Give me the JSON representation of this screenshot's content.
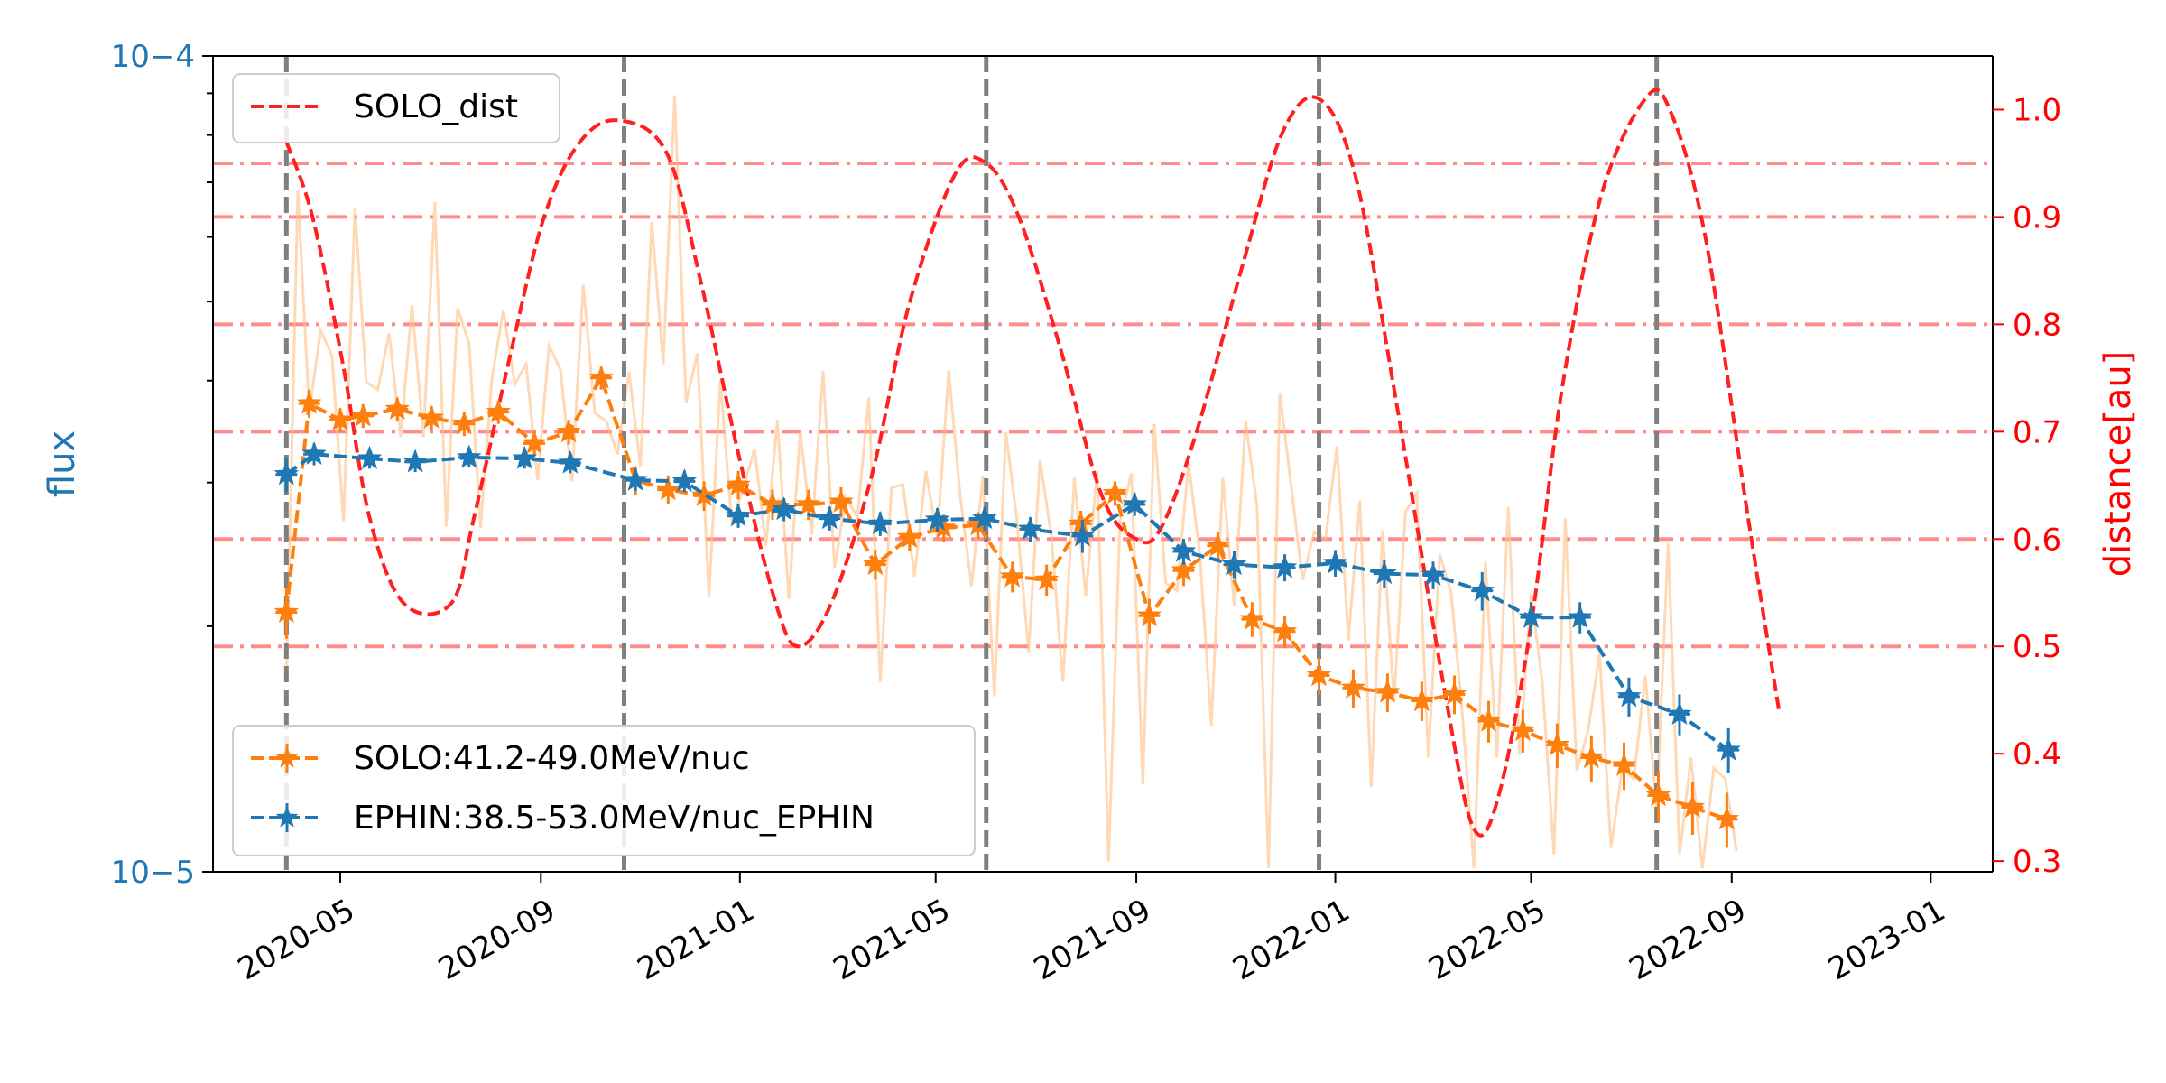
{
  "chart_data": {
    "type": "line",
    "x_axis": {
      "type": "date",
      "range": [
        "2020-02-13",
        "2023-02-08"
      ],
      "ticks": [
        "2020-05-01",
        "2020-09-01",
        "2021-01-01",
        "2021-05-01",
        "2021-09-01",
        "2022-01-01",
        "2022-05-01",
        "2022-09-01",
        "2023-01-01"
      ],
      "tick_labels": [
        "2020-05",
        "2020-09",
        "2021-01",
        "2021-05",
        "2021-09",
        "2022-01",
        "2022-05",
        "2022-09",
        "2023-01"
      ]
    },
    "y_left": {
      "label": "flux",
      "scale": "log",
      "range": [
        1e-05,
        0.0001
      ],
      "major_tick_labels": [
        "10−4",
        "10−5"
      ],
      "color": "#1f77b4"
    },
    "y_right": {
      "label": "distance[au]",
      "range": [
        0.29,
        1.05
      ],
      "ticks": [
        0.3,
        0.4,
        0.5,
        0.6,
        0.7,
        0.8,
        0.9,
        1.0
      ],
      "tick_labels": [
        "0.3",
        "0.4",
        "0.5",
        "0.6",
        "0.7",
        "0.8",
        "0.9",
        "1.0"
      ],
      "color": "#ff0000"
    },
    "horizontal_reference_lines": {
      "axis": "right",
      "values": [
        0.5,
        0.6,
        0.7,
        0.8,
        0.9,
        0.95
      ],
      "style": "dash-dot",
      "color": "#ff0000"
    },
    "vertical_reference_lines": {
      "dates": [
        "2020-03-29",
        "2020-10-22",
        "2021-06-01",
        "2021-12-22",
        "2022-07-17"
      ],
      "style": "dashed",
      "color": "#808080"
    },
    "grid": false,
    "series": [
      {
        "name": "SOLO_dist",
        "axis": "right",
        "style": "dashed",
        "color": "#ff2020",
        "legend": "top-left",
        "x": [
          "2020-03-29",
          "2020-04-14",
          "2020-05-03",
          "2020-05-19",
          "2020-06-09",
          "2020-07-08",
          "2020-07-22",
          "2020-08-13",
          "2020-09-03",
          "2020-09-25",
          "2020-10-19",
          "2020-11-17",
          "2020-12-08",
          "2020-12-31",
          "2021-01-23",
          "2021-02-06",
          "2021-02-26",
          "2021-03-23",
          "2021-04-15",
          "2021-05-13",
          "2021-06-01",
          "2021-06-21",
          "2021-07-16",
          "2021-08-11",
          "2021-09-01",
          "2021-09-16",
          "2021-10-08",
          "2021-11-06",
          "2021-11-30",
          "2021-12-22",
          "2022-01-13",
          "2022-02-06",
          "2022-03-10",
          "2022-03-27",
          "2022-04-11",
          "2022-05-01",
          "2022-05-20",
          "2022-06-13",
          "2022-07-10",
          "2022-07-25",
          "2022-08-16",
          "2022-09-11",
          "2022-09-30"
        ],
        "y": [
          0.97,
          0.9,
          0.76,
          0.62,
          0.54,
          0.54,
          0.62,
          0.77,
          0.9,
          0.97,
          0.99,
          0.96,
          0.84,
          0.68,
          0.54,
          0.5,
          0.54,
          0.66,
          0.82,
          0.94,
          0.95,
          0.9,
          0.78,
          0.64,
          0.6,
          0.61,
          0.7,
          0.86,
          0.98,
          1.01,
          0.94,
          0.74,
          0.45,
          0.33,
          0.36,
          0.52,
          0.74,
          0.92,
          1.01,
          1.0,
          0.88,
          0.62,
          0.44
        ]
      },
      {
        "name": "SOLO:41.2-49.0MeV/nuc",
        "axis": "left",
        "style": "dashed",
        "marker": "star",
        "color": "#ff7f0e",
        "legend": "bottom-left",
        "x": [
          "2020-03-29",
          "2020-04-12",
          "2020-05-01",
          "2020-05-15",
          "2020-06-05",
          "2020-06-26",
          "2020-07-16",
          "2020-08-06",
          "2020-08-28",
          "2020-09-18",
          "2020-10-08",
          "2020-10-29",
          "2020-11-18",
          "2020-12-10",
          "2020-12-31",
          "2021-01-21",
          "2021-02-12",
          "2021-03-04",
          "2021-03-25",
          "2021-04-15",
          "2021-05-06",
          "2021-05-27",
          "2021-06-17",
          "2021-07-08",
          "2021-07-29",
          "2021-08-19",
          "2021-09-09",
          "2021-09-30",
          "2021-10-21",
          "2021-11-11",
          "2021-12-01",
          "2021-12-22",
          "2022-01-12",
          "2022-02-02",
          "2022-02-23",
          "2022-03-15",
          "2022-04-05",
          "2022-04-26",
          "2022-05-17",
          "2022-06-07",
          "2022-06-27",
          "2022-07-18",
          "2022-08-08",
          "2022-08-29"
        ],
        "y": [
          2.08e-05,
          3.75e-05,
          3.58e-05,
          3.62e-05,
          3.69e-05,
          3.6e-05,
          3.54e-05,
          3.66e-05,
          3.35e-05,
          3.46e-05,
          4.03e-05,
          3.02e-05,
          2.94e-05,
          2.89e-05,
          2.98e-05,
          2.82e-05,
          2.82e-05,
          2.84e-05,
          2.38e-05,
          2.57e-05,
          2.64e-05,
          2.66e-05,
          2.3e-05,
          2.28e-05,
          2.67e-05,
          2.91e-05,
          2.06e-05,
          2.34e-05,
          2.51e-05,
          2.04e-05,
          1.97e-05,
          1.74e-05,
          1.68e-05,
          1.66e-05,
          1.62e-05,
          1.65e-05,
          1.53e-05,
          1.49e-05,
          1.43e-05,
          1.38e-05,
          1.35e-05,
          1.24e-05,
          1.2e-05,
          1.16e-05
        ],
        "y_error": [
          1.5e-06,
          1.5e-06,
          1.2e-06,
          1.2e-06,
          1.2e-06,
          1.2e-06,
          1.2e-06,
          1.2e-06,
          1.2e-06,
          1.2e-06,
          1.3e-06,
          1.2e-06,
          1.2e-06,
          1.2e-06,
          1.2e-06,
          1.2e-06,
          1.2e-06,
          1.2e-06,
          1e-06,
          1e-06,
          1e-06,
          1e-06,
          1e-06,
          1e-06,
          1e-06,
          1e-06,
          1e-06,
          1e-06,
          1e-06,
          1e-06,
          9e-07,
          9e-07,
          9e-07,
          9e-07,
          9e-07,
          9e-07,
          9e-07,
          9e-07,
          9e-07,
          9e-07,
          9e-07,
          9e-07,
          9e-07,
          9e-07
        ]
      },
      {
        "name": "EPHIN:38.5-53.0MeV/nuc_EPHIN",
        "axis": "left",
        "style": "dashed",
        "marker": "star",
        "color": "#1f77b4",
        "legend": "bottom-left",
        "x": [
          "2020-03-29",
          "2020-04-15",
          "2020-05-19",
          "2020-06-16",
          "2020-07-19",
          "2020-08-22",
          "2020-09-19",
          "2020-10-29",
          "2020-11-28",
          "2020-12-31",
          "2021-01-28",
          "2021-02-25",
          "2021-03-28",
          "2021-05-02",
          "2021-05-31",
          "2021-06-28",
          "2021-07-30",
          "2021-08-31",
          "2021-09-30",
          "2021-10-31",
          "2021-12-01",
          "2022-01-01",
          "2022-01-31",
          "2022-03-02",
          "2022-04-01",
          "2022-05-01",
          "2022-05-31",
          "2022-06-30",
          "2022-07-31",
          "2022-08-30"
        ],
        "y": [
          3.07e-05,
          3.25e-05,
          3.21e-05,
          3.18e-05,
          3.22e-05,
          3.21e-05,
          3.17e-05,
          3.02e-05,
          3.01e-05,
          2.73e-05,
          2.78e-05,
          2.71e-05,
          2.67e-05,
          2.7e-05,
          2.71e-05,
          2.63e-05,
          2.58e-05,
          2.82e-05,
          2.47e-05,
          2.38e-05,
          2.36e-05,
          2.39e-05,
          2.32e-05,
          2.31e-05,
          2.21e-05,
          2.05e-05,
          2.05e-05,
          1.64e-05,
          1.56e-05,
          1.41e-05
        ],
        "y_error": [
          1.5e-06,
          1e-06,
          9e-07,
          9e-07,
          9e-07,
          9e-07,
          9e-07,
          9e-07,
          9e-07,
          9e-07,
          9e-07,
          9e-07,
          9e-07,
          9e-07,
          9e-07,
          9e-07,
          1.2e-06,
          9e-07,
          9e-07,
          9e-07,
          9e-07,
          9e-07,
          9e-07,
          9e-07,
          1.2e-06,
          9e-07,
          9e-07,
          9e-07,
          9e-07,
          9e-07
        ]
      },
      {
        "name": "",
        "axis": "left",
        "style": "solid",
        "color": "#ffbf86",
        "opacity": 0.6,
        "legend": "none",
        "x": [
          "2020-03-29",
          "2020-04-05",
          "2020-04-12",
          "2020-04-19",
          "2020-04-26",
          "2020-05-03",
          "2020-05-10",
          "2020-05-17",
          "2020-05-24",
          "2020-05-31",
          "2020-06-07",
          "2020-06-14",
          "2020-06-21",
          "2020-06-28",
          "2020-07-05",
          "2020-07-12",
          "2020-07-19",
          "2020-07-26",
          "2020-08-02",
          "2020-08-09",
          "2020-08-16",
          "2020-08-23",
          "2020-08-30",
          "2020-09-06",
          "2020-09-13",
          "2020-09-20",
          "2020-09-27",
          "2020-10-04",
          "2020-10-11",
          "2020-10-18",
          "2020-10-25",
          "2020-11-01",
          "2020-11-08",
          "2020-11-15",
          "2020-11-22",
          "2020-11-29",
          "2020-12-06",
          "2020-12-13",
          "2020-12-20",
          "2020-12-27",
          "2021-01-03",
          "2021-01-10",
          "2021-01-17",
          "2021-01-24",
          "2021-01-31",
          "2021-02-07",
          "2021-02-14",
          "2021-02-21",
          "2021-02-28",
          "2021-03-07",
          "2021-03-14",
          "2021-03-21",
          "2021-03-28",
          "2021-04-04",
          "2021-04-11",
          "2021-04-18",
          "2021-04-25",
          "2021-05-02",
          "2021-05-09",
          "2021-05-16",
          "2021-05-23",
          "2021-05-30",
          "2021-06-06",
          "2021-06-13",
          "2021-06-20",
          "2021-06-27",
          "2021-07-04",
          "2021-07-11",
          "2021-07-18",
          "2021-07-25",
          "2021-08-01",
          "2021-08-08",
          "2021-08-15",
          "2021-08-22",
          "2021-08-29",
          "2021-09-05",
          "2021-09-12",
          "2021-09-19",
          "2021-09-26",
          "2021-10-03",
          "2021-10-10",
          "2021-10-17",
          "2021-10-24",
          "2021-10-31",
          "2021-11-07",
          "2021-11-14",
          "2021-11-21",
          "2021-11-28",
          "2021-12-05",
          "2021-12-12",
          "2021-12-19",
          "2021-12-26",
          "2022-01-02",
          "2022-01-09",
          "2022-01-16",
          "2022-01-23",
          "2022-01-30",
          "2022-02-06",
          "2022-02-13",
          "2022-02-20",
          "2022-02-27",
          "2022-03-06",
          "2022-03-13",
          "2022-03-20",
          "2022-03-27",
          "2022-04-03",
          "2022-04-10",
          "2022-04-17",
          "2022-04-24",
          "2022-05-01",
          "2022-05-08",
          "2022-05-15",
          "2022-05-22",
          "2022-05-29",
          "2022-06-05",
          "2022-06-12",
          "2022-06-19",
          "2022-06-26",
          "2022-07-03",
          "2022-07-10",
          "2022-07-17",
          "2022-07-24",
          "2022-07-31",
          "2022-08-07",
          "2022-08-14",
          "2022-08-21",
          "2022-08-28",
          "2022-09-04"
        ],
        "y": [
          1.71e-05,
          6.84e-05,
          3.66e-05,
          4.61e-05,
          4.29e-05,
          2.69e-05,
          6.5e-05,
          3.98e-05,
          3.9e-05,
          4.57e-05,
          3.41e-05,
          4.95e-05,
          3.41e-05,
          6.62e-05,
          2.65e-05,
          4.91e-05,
          4.44e-05,
          2.64e-05,
          4.03e-05,
          4.88e-05,
          3.96e-05,
          4.19e-05,
          3.02e-05,
          4.41e-05,
          4.13e-05,
          3.01e-05,
          5.24e-05,
          3.65e-05,
          3.57e-05,
          3.25e-05,
          4.1e-05,
          3.14e-05,
          6.26e-05,
          4.19e-05,
          8.95e-05,
          3.76e-05,
          4.32e-05,
          2.17e-05,
          4e-05,
          2.68e-05,
          2.95e-05,
          3.3e-05,
          2.51e-05,
          3.58e-05,
          2.16e-05,
          3.47e-05,
          2.59e-05,
          4.11e-05,
          2.36e-05,
          2.88e-05,
          2.72e-05,
          3.81e-05,
          1.71e-05,
          2.96e-05,
          2.98e-05,
          2.3e-05,
          3.1e-05,
          2.57e-05,
          4.12e-05,
          2.9e-05,
          2.24e-05,
          3.06e-05,
          1.64e-05,
          3.46e-05,
          2.68e-05,
          1.86e-05,
          3.2e-05,
          2.57e-05,
          1.71e-05,
          3.04e-05,
          2.18e-05,
          3.1e-05,
          1.03e-05,
          2.69e-05,
          3.08e-05,
          1.28e-05,
          3.54e-05,
          2.26e-05,
          2.21e-05,
          3.18e-05,
          2.44e-05,
          1.51e-05,
          3.04e-05,
          2.12e-05,
          3.57e-05,
          2.81e-05,
          1.01e-05,
          3.86e-05,
          2.96e-05,
          2.28e-05,
          2.61e-05,
          2.56e-05,
          3.32e-05,
          1.92e-05,
          2.85e-05,
          1.27e-05,
          2.62e-05,
          1.62e-05,
          2.76e-05,
          2.91e-05,
          1.38e-05,
          2.45e-05,
          2.2e-05,
          1.55e-05,
          1.01e-05,
          2.4e-05,
          1.38e-05,
          2.8e-05,
          1.39e-05,
          2.19e-05,
          1.7e-05,
          1.05e-05,
          2.71e-05,
          1.33e-05,
          1.49e-05,
          1.85e-05,
          1.07e-05,
          1.34e-05,
          1.3e-05,
          1.74e-05,
          1.19e-05,
          2.53e-05,
          1.05e-05,
          1.38e-05,
          1.01e-05,
          1.34e-05,
          1.3e-05,
          1.06e-05
        ]
      }
    ]
  }
}
